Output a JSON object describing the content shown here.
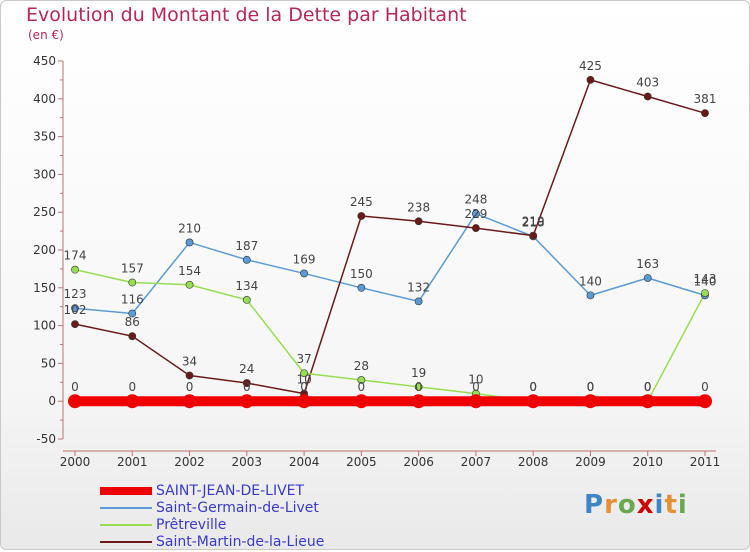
{
  "chart_data": {
    "type": "line",
    "title": "Evolution du Montant de la Dette par Habitant",
    "subtitle": "(en €)",
    "x": [
      "2000",
      "2001",
      "2002",
      "2003",
      "2004",
      "2005",
      "2006",
      "2007",
      "2008",
      "2009",
      "2010",
      "2011"
    ],
    "ylim": [
      -50,
      450
    ],
    "yticks": [
      -50,
      0,
      50,
      100,
      150,
      200,
      250,
      300,
      350,
      400,
      450
    ],
    "grid": false,
    "legend_position": "bottom-left",
    "series": [
      {
        "name": "SAINT-JEAN-DE-LIVET",
        "color": "#ee0000",
        "values": [
          0,
          0,
          0,
          0,
          0,
          0,
          0,
          0,
          0,
          0,
          0,
          0
        ],
        "labels": [
          "0",
          "0",
          "0",
          "0",
          "0",
          "0",
          "0",
          "0",
          "0",
          "0",
          "0",
          "0"
        ]
      },
      {
        "name": "Saint-Germain-de-Livet",
        "color": "#5b9bd5",
        "values": [
          123,
          116,
          210,
          187,
          169,
          150,
          132,
          248,
          218,
          140,
          163,
          140
        ],
        "labels": [
          "123",
          "116",
          "210",
          "187",
          "169",
          "150",
          "132",
          "248",
          "218",
          "140",
          "163",
          "140"
        ]
      },
      {
        "name": "Prêtreville",
        "color": "#99dd55",
        "values": [
          174,
          157,
          154,
          134,
          37,
          28,
          19,
          10,
          0,
          0,
          0,
          143
        ],
        "labels": [
          "174",
          "157",
          "154",
          "134",
          "37",
          "28",
          "19",
          "10",
          "0",
          "0",
          "0",
          "143"
        ]
      },
      {
        "name": "Saint-Martin-de-la-Lieue",
        "color": "#6b1a1a",
        "values": [
          102,
          86,
          34,
          24,
          10,
          245,
          238,
          229,
          219,
          425,
          403,
          381
        ],
        "labels": [
          "102",
          "86",
          "34",
          "24",
          "10",
          "245",
          "238",
          "229",
          "219",
          "425",
          "403",
          "381"
        ]
      }
    ]
  },
  "logo": {
    "letters": [
      "P",
      "r",
      "o",
      "x",
      "i",
      "t",
      "i"
    ],
    "colors": [
      "#3d85c6",
      "#e69138",
      "#6aa84f",
      "#cc0000",
      "#3d85c6",
      "#e69138",
      "#6aa84f"
    ]
  }
}
